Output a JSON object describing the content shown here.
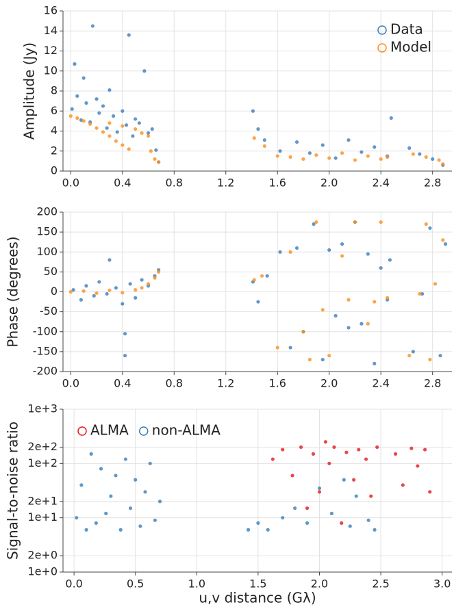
{
  "chart_data": [
    {
      "type": "scatter",
      "ylabel": "Amplitude (Jy)",
      "legend": "upper right",
      "grid": true,
      "xlim": [
        -0.06,
        2.95
      ],
      "ylim": [
        0,
        16
      ],
      "xticks": [
        {
          "value": 0,
          "label": "0.0"
        },
        0.4,
        0.8,
        1.2,
        1.6,
        {
          "value": 2,
          "label": "2.0"
        },
        2.4,
        2.8
      ],
      "yticks": [
        0,
        2,
        4,
        6,
        8,
        10,
        12,
        14,
        16
      ],
      "series": [
        {
          "name": "Data",
          "color": "#3a7dbb",
          "x": [
            0.01,
            0.03,
            0.05,
            0.08,
            0.1,
            0.12,
            0.15,
            0.17,
            0.2,
            0.22,
            0.25,
            0.28,
            0.3,
            0.33,
            0.36,
            0.4,
            0.43,
            0.45,
            0.48,
            0.5,
            0.53,
            0.57,
            0.6,
            0.63,
            0.66,
            0.68,
            1.41,
            1.45,
            1.5,
            1.62,
            1.75,
            1.85,
            1.95,
            2.05,
            2.15,
            2.25,
            2.35,
            2.45,
            2.48,
            2.62,
            2.7,
            2.8,
            2.88
          ],
          "values": [
            6.2,
            10.7,
            7.5,
            5.1,
            9.3,
            6.8,
            4.9,
            14.5,
            7.2,
            5.8,
            6.5,
            4.3,
            8.1,
            5.5,
            3.9,
            6.0,
            4.6,
            13.6,
            3.5,
            5.2,
            4.8,
            10.0,
            3.8,
            4.2,
            2.1,
            0.9,
            6.0,
            4.2,
            3.1,
            2.0,
            2.9,
            1.8,
            2.6,
            1.3,
            3.1,
            1.9,
            2.4,
            1.5,
            5.3,
            2.3,
            1.7,
            1.2,
            0.6
          ]
        },
        {
          "name": "Model",
          "color": "#ff8c1a",
          "x": [
            0.0,
            0.05,
            0.1,
            0.15,
            0.2,
            0.25,
            0.3,
            0.35,
            0.4,
            0.45,
            0.3,
            0.4,
            0.5,
            0.55,
            0.6,
            0.62,
            0.65,
            0.68,
            1.42,
            1.5,
            1.6,
            1.7,
            1.8,
            1.9,
            2.0,
            2.1,
            2.2,
            2.3,
            2.4,
            2.45,
            2.65,
            2.75,
            2.85,
            2.88
          ],
          "values": [
            5.5,
            5.3,
            5.0,
            4.7,
            4.3,
            3.9,
            3.5,
            3.0,
            2.6,
            2.2,
            4.8,
            4.5,
            4.2,
            3.8,
            3.5,
            2.0,
            1.2,
            0.9,
            3.3,
            2.5,
            1.5,
            1.4,
            1.2,
            1.6,
            1.3,
            1.8,
            1.1,
            1.5,
            1.2,
            1.4,
            1.7,
            1.4,
            1.1,
            0.7
          ]
        }
      ]
    },
    {
      "type": "scatter",
      "ylabel": "Phase (degrees)",
      "grid": true,
      "xlim": [
        -0.06,
        2.95
      ],
      "ylim": [
        -200,
        200
      ],
      "xticks": [
        {
          "value": 0,
          "label": "0.0"
        },
        0.4,
        0.8,
        1.2,
        1.6,
        {
          "value": 2,
          "label": "2.0"
        },
        2.4,
        2.8
      ],
      "yticks": [
        -200,
        -150,
        -100,
        -50,
        0,
        50,
        100,
        150,
        200
      ],
      "series": [
        {
          "color": "#3a7dbb",
          "x": [
            0.02,
            0.08,
            0.12,
            0.18,
            0.22,
            0.28,
            0.3,
            0.35,
            0.4,
            0.42,
            0.42,
            0.46,
            0.5,
            0.55,
            0.6,
            0.65,
            0.68,
            1.41,
            1.45,
            1.52,
            1.62,
            1.7,
            1.75,
            1.8,
            1.88,
            1.95,
            2.0,
            2.05,
            2.1,
            2.15,
            2.2,
            2.25,
            2.3,
            2.35,
            2.4,
            2.45,
            2.47,
            2.65,
            2.72,
            2.78,
            2.86,
            2.9
          ],
          "values": [
            5,
            -20,
            15,
            -10,
            25,
            -5,
            80,
            10,
            -30,
            -160,
            -105,
            20,
            -15,
            30,
            15,
            40,
            55,
            25,
            -25,
            40,
            100,
            -140,
            110,
            -100,
            170,
            -170,
            105,
            -60,
            120,
            -90,
            175,
            -80,
            95,
            -180,
            60,
            -20,
            80,
            -150,
            -5,
            160,
            -160,
            120
          ]
        },
        {
          "color": "#ff8c1a",
          "x": [
            0.0,
            0.1,
            0.2,
            0.3,
            0.4,
            0.5,
            0.55,
            0.6,
            0.65,
            0.68,
            1.42,
            1.48,
            1.6,
            1.7,
            1.8,
            1.85,
            1.9,
            1.95,
            2.0,
            2.1,
            2.15,
            2.2,
            2.3,
            2.35,
            2.4,
            2.45,
            2.62,
            2.7,
            2.75,
            2.78,
            2.82,
            2.88
          ],
          "values": [
            0,
            2,
            -3,
            4,
            -2,
            5,
            10,
            20,
            35,
            50,
            30,
            40,
            -140,
            100,
            -100,
            -170,
            175,
            -45,
            -160,
            90,
            -20,
            175,
            -80,
            -25,
            175,
            -15,
            -160,
            -5,
            170,
            -170,
            20,
            130
          ]
        }
      ]
    },
    {
      "type": "scatter",
      "ylabel": "Signal-to-noise ratio",
      "xlabel": "u,v distance (Gλ)",
      "legend": "upper left",
      "grid": true,
      "yscale": "log",
      "xlim": [
        -0.09,
        3.08
      ],
      "ylim": [
        1,
        1000
      ],
      "xticks": [
        {
          "value": 0,
          "label": "0.0"
        },
        0.5,
        {
          "value": 1,
          "label": "1.0"
        },
        1.5,
        {
          "value": 2,
          "label": "2.0"
        },
        2.5,
        {
          "value": 3,
          "label": "3.0"
        }
      ],
      "yticks": [
        {
          "value": 1,
          "label": "1e+0"
        },
        {
          "value": 2,
          "label": "2e+0"
        },
        {
          "value": 10,
          "label": "1e+1"
        },
        {
          "value": 20,
          "label": "2e+1"
        },
        {
          "value": 100,
          "label": "1e+2"
        },
        {
          "value": 200,
          "label": "2e+2"
        },
        {
          "value": 1000,
          "label": "1e+3"
        }
      ],
      "series": [
        {
          "name": "ALMA",
          "color": "#e41a1c",
          "x": [
            1.62,
            1.7,
            1.78,
            1.85,
            1.9,
            1.95,
            2.0,
            2.05,
            2.08,
            2.12,
            2.18,
            2.22,
            2.28,
            2.32,
            2.38,
            2.42,
            2.47,
            2.62,
            2.68,
            2.75,
            2.8,
            2.86,
            2.9
          ],
          "values": [
            120,
            180,
            60,
            200,
            15,
            150,
            30,
            250,
            100,
            200,
            8,
            160,
            50,
            180,
            120,
            25,
            200,
            150,
            40,
            190,
            90,
            180,
            30
          ]
        },
        {
          "name": "non-ALMA",
          "color": "#377eb8",
          "x": [
            0.02,
            0.06,
            0.1,
            0.14,
            0.18,
            0.22,
            0.26,
            0.3,
            0.34,
            0.38,
            0.42,
            0.46,
            0.5,
            0.54,
            0.58,
            0.62,
            0.66,
            0.7,
            1.42,
            1.5,
            1.58,
            1.7,
            1.8,
            1.9,
            2.0,
            2.1,
            2.2,
            2.25,
            2.3,
            2.4,
            2.45
          ],
          "values": [
            10,
            40,
            6,
            150,
            8,
            80,
            12,
            25,
            60,
            6,
            120,
            15,
            50,
            7,
            30,
            100,
            9,
            20,
            6,
            8,
            6,
            10,
            15,
            8,
            35,
            12,
            50,
            7,
            25,
            9,
            6
          ]
        }
      ]
    }
  ]
}
